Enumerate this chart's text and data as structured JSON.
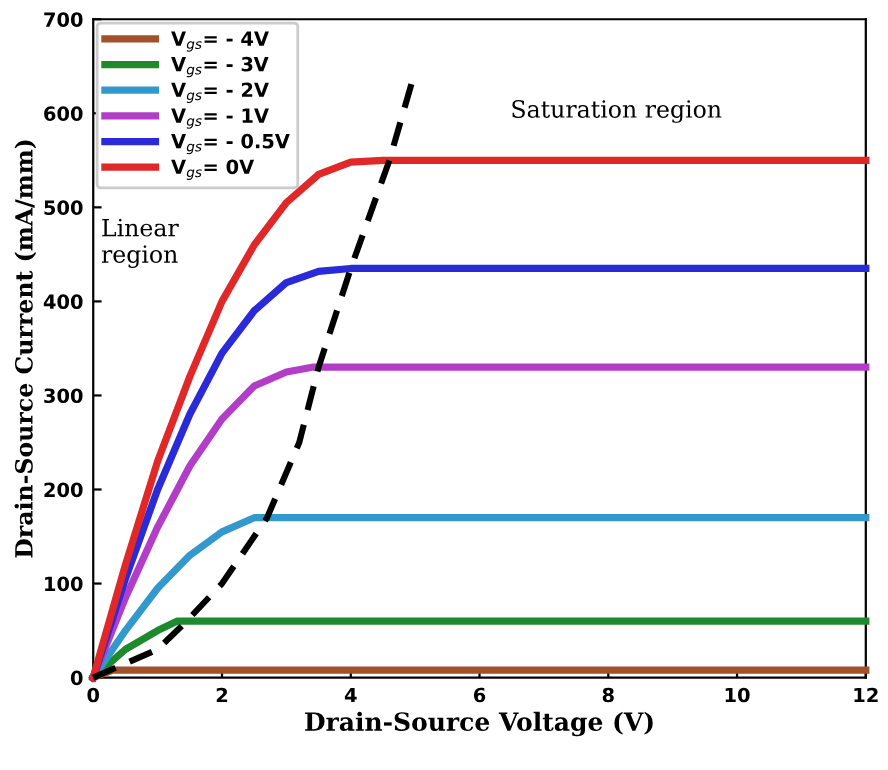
{
  "chart_data": {
    "type": "line",
    "xlabel": "Drain-Source Voltage (V)",
    "ylabel": "Drain-Source Current (mA/mm)",
    "xlim": [
      0,
      12
    ],
    "ylim": [
      0,
      700
    ],
    "xticks": [
      0,
      2,
      4,
      6,
      8,
      10,
      12
    ],
    "yticks": [
      0,
      100,
      200,
      300,
      400,
      500,
      600,
      700
    ],
    "grid": false,
    "legend": "top left",
    "marker": "none",
    "line_style": "solid",
    "annotations": [
      "Saturation region",
      "Linear\nregion"
    ],
    "series": [
      {
        "name": "V$_{gs}$= - 4V",
        "color": "#a0522d",
        "x": [
          0,
          0.3,
          12
        ],
        "values": [
          0,
          8,
          8
        ]
      },
      {
        "name": "V$_{gs}$= - 3V",
        "color": "#1e8a2e",
        "x": [
          0,
          0.5,
          1,
          1.3,
          12
        ],
        "values": [
          0,
          30,
          50,
          60,
          60
        ]
      },
      {
        "name": "V$_{gs}$= - 2V",
        "color": "#3399cc",
        "x": [
          0,
          0.5,
          1,
          1.5,
          2,
          2.5,
          12
        ],
        "values": [
          0,
          50,
          95,
          130,
          155,
          170,
          170
        ]
      },
      {
        "name": "V$_{gs}$= - 1V",
        "color": "#b23ec8",
        "x": [
          0,
          0.5,
          1,
          1.5,
          2,
          2.5,
          3,
          3.4,
          12
        ],
        "values": [
          0,
          85,
          160,
          225,
          275,
          310,
          325,
          330,
          330
        ]
      },
      {
        "name": "V$_{gs}$= - 0.5V",
        "color": "#2a2ad8",
        "x": [
          0,
          0.5,
          1,
          1.5,
          2,
          2.5,
          3,
          3.5,
          4,
          12
        ],
        "values": [
          0,
          105,
          200,
          280,
          345,
          390,
          420,
          432,
          435,
          435
        ]
      },
      {
        "name": "V$_{gs}$= 0V",
        "color": "#e02828",
        "x": [
          0,
          0.5,
          1,
          1.5,
          2,
          2.5,
          3,
          3.5,
          4,
          4.5,
          12
        ],
        "values": [
          0,
          120,
          230,
          320,
          400,
          460,
          505,
          535,
          548,
          550,
          550
        ]
      },
      {
        "color": "#000000",
        "line_style": "dashed",
        "x": [
          0,
          1,
          1.45,
          2,
          2.7,
          3.2,
          3.5,
          4,
          4.6,
          4.95
        ],
        "values": [
          0,
          30,
          60,
          100,
          170,
          250,
          330,
          435,
          550,
          633
        ]
      }
    ]
  }
}
